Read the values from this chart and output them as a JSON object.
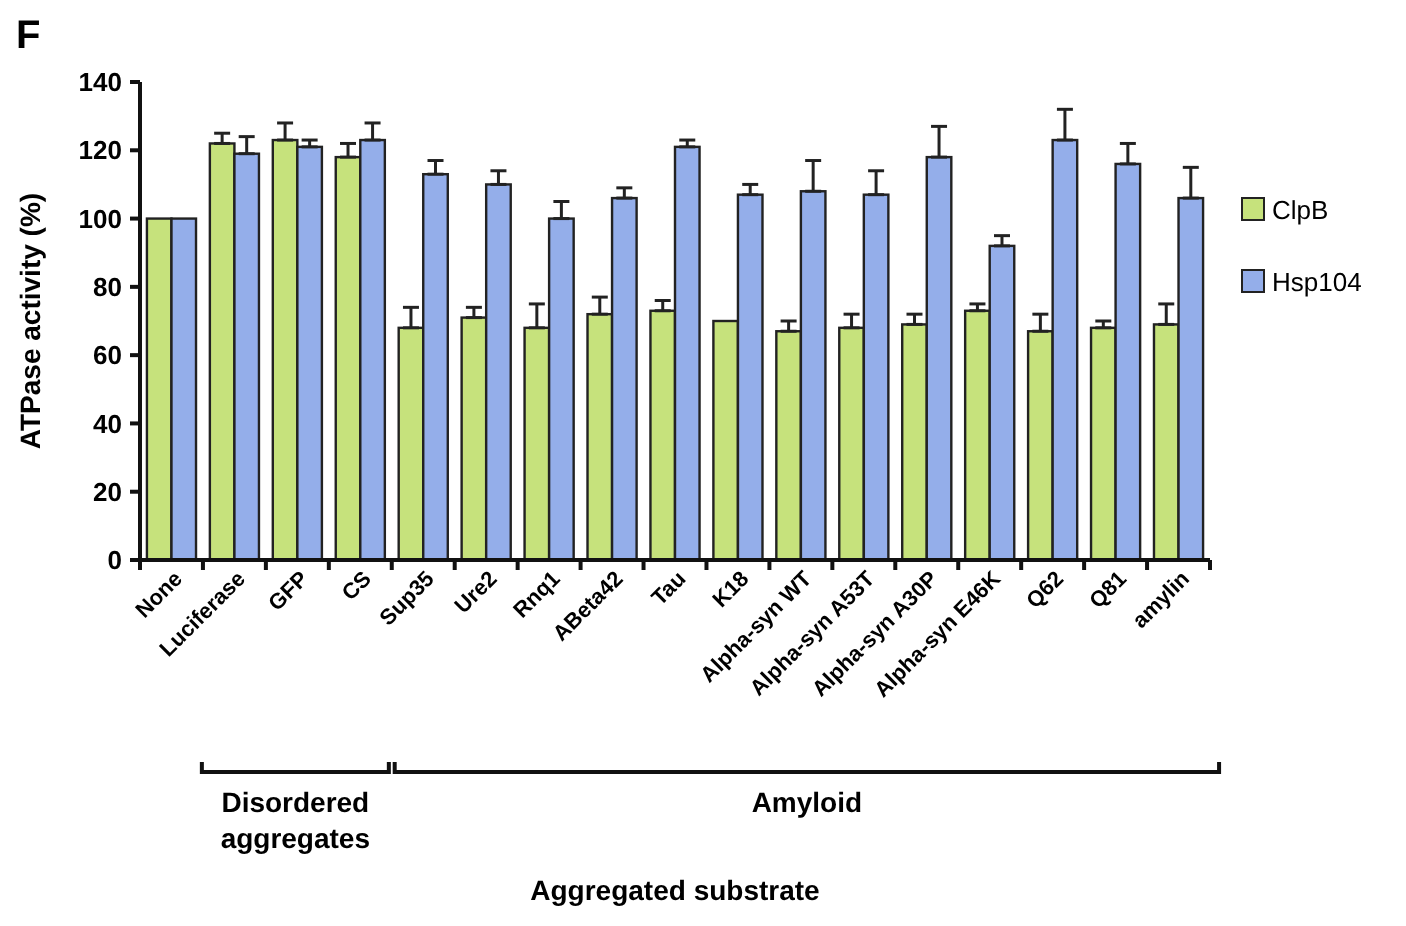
{
  "chart_data": {
    "type": "bar",
    "ylabel": "ATPase activity (%)",
    "annotations": [
      "F",
      "Disordered aggregates",
      "Amyloid",
      "Aggregated substrate"
    ],
    "categories": [
      "None",
      "Luciferase",
      "GFP",
      "CS",
      "Sup35",
      "Ure2",
      "Rnq1",
      "ABeta42",
      "Tau",
      "K18",
      "Alpha-syn WT",
      "Alpha-syn A53T",
      "Alpha-syn A30P",
      "Alpha-syn E46K",
      "Q62",
      "Q81",
      "amylin"
    ],
    "series": [
      {
        "name": "ClpB",
        "color": "#c6e27c",
        "values": [
          100,
          122,
          123,
          118,
          68,
          71,
          68,
          72,
          73,
          70,
          67,
          68,
          69,
          73,
          67,
          68,
          69
        ],
        "errors": [
          null,
          [
            122,
            125
          ],
          [
            123,
            128
          ],
          [
            118,
            122
          ],
          [
            68,
            74
          ],
          [
            71,
            74
          ],
          [
            68,
            75
          ],
          [
            72,
            77
          ],
          [
            73,
            76
          ],
          null,
          [
            67,
            70
          ],
          [
            68,
            72
          ],
          [
            69,
            72
          ],
          [
            73,
            75
          ],
          [
            67,
            72
          ],
          [
            68,
            70
          ],
          [
            69,
            75
          ]
        ]
      },
      {
        "name": "Hsp104",
        "color": "#94aeea",
        "values": [
          100,
          119,
          121,
          123,
          113,
          110,
          100,
          106,
          121,
          107,
          108,
          107,
          118,
          92,
          123,
          116,
          106
        ],
        "errors": [
          null,
          [
            119,
            124
          ],
          [
            121,
            123
          ],
          [
            123,
            128
          ],
          [
            113,
            117
          ],
          [
            110,
            114
          ],
          [
            100,
            105
          ],
          [
            106,
            109
          ],
          [
            121,
            123
          ],
          [
            107,
            110
          ],
          [
            108,
            117
          ],
          [
            107,
            114
          ],
          [
            118,
            127
          ],
          [
            92,
            95
          ],
          [
            123,
            132
          ],
          [
            116,
            122
          ],
          [
            106,
            115
          ]
        ]
      }
    ],
    "ylim": [
      0,
      140
    ],
    "yticks": [
      0,
      20,
      40,
      60,
      80,
      100,
      120,
      140
    ],
    "grid": false,
    "legend": "right"
  }
}
